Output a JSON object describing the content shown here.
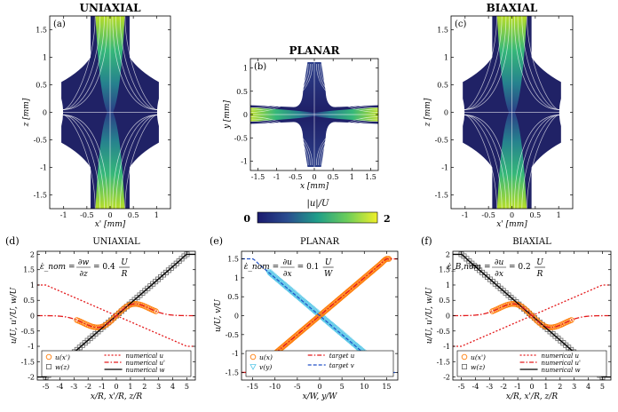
{
  "colors": {
    "vmin": "#1a1a6e",
    "vmid": "#1f9e89",
    "vmax": "#f0f02a",
    "orange": "#ff7f0e",
    "red": "#e41a1c",
    "blue": "#2151c8",
    "cyan": "#5bc8e8",
    "grey": "#666666"
  },
  "colorbar": {
    "label": "|u|/U",
    "min_label": "0",
    "max_label": "2",
    "vmin": 0,
    "vmax": 2
  },
  "fields": [
    {
      "id": "uniaxial",
      "title": "UNIAXIAL",
      "panel": "(a)",
      "xlabel": "x' [mm]",
      "ylabel": "z [mm]",
      "xticks": [
        -1,
        -0.5,
        0,
        0.5,
        1
      ],
      "yticks": [
        -1.5,
        -1,
        -0.5,
        0,
        0.5,
        1,
        1.5
      ],
      "xlim": [
        -1.3,
        1.3
      ],
      "ylim": [
        -1.75,
        1.75
      ]
    },
    {
      "id": "planar",
      "title": "PLANAR",
      "panel": "(b)",
      "xlabel": "x [mm]",
      "ylabel": "y [mm]",
      "xticks": [
        -1.5,
        -1,
        -0.5,
        0,
        0.5,
        1,
        1.5
      ],
      "yticks": [
        -1,
        -0.5,
        0,
        0.5,
        1
      ],
      "xlim": [
        -1.7,
        1.7
      ],
      "ylim": [
        -1.2,
        1.2
      ]
    },
    {
      "id": "biaxial",
      "title": "BIAXIAL",
      "panel": "(c)",
      "xlabel": "x' [mm]",
      "ylabel": "z [mm]",
      "xticks": [
        -1,
        -0.5,
        0,
        0.5,
        1
      ],
      "yticks": [
        -1.5,
        -1,
        -0.5,
        0,
        0.5,
        1,
        1.5
      ],
      "xlim": [
        -1.3,
        1.3
      ],
      "ylim": [
        -1.75,
        1.75
      ]
    }
  ],
  "chart_data": [
    {
      "type": "scatter",
      "id": "uniaxial",
      "panel": "(d)",
      "title": "UNIAXIAL",
      "rate_lhs": "ε̇_nom",
      "rate_frac_num": "∂w",
      "rate_frac_den": "∂z",
      "rate_mid": "= 0.4",
      "rate_u_num": "U",
      "rate_u_den": "R",
      "xlabel": "x/R, x'/R, z/R",
      "ylabel": "u/U, u'/U, w/U",
      "xlim": [
        -5.6,
        5.6
      ],
      "ylim": [
        -2.1,
        2.1
      ],
      "xticks": [
        -5,
        -4,
        -3,
        -2,
        -1,
        0,
        1,
        2,
        3,
        4,
        5
      ],
      "yticks": [
        -2,
        -1.5,
        -1,
        -0.5,
        0,
        0.5,
        1,
        1.5,
        2
      ],
      "legend_markers": [
        "u(x')",
        "w(z)"
      ],
      "legend_lines": [
        "numerical u",
        "numerical u'",
        "numerical w"
      ],
      "profiles": {
        "w_slope": 0.4,
        "w_sat": 2.0,
        "w_edge": 5.0,
        "u_slope": -0.2,
        "u_sat": -1.0,
        "u_edge": 5.2,
        "up_amp": 0.33,
        "up_peak": 1.9,
        "up_decay": 5.5
      },
      "samples": {
        "w_range": [
          -5,
          5
        ],
        "w_n": 55,
        "u_range": [
          -2.8,
          2.8
        ],
        "u_n": 46
      }
    },
    {
      "type": "scatter",
      "id": "planar",
      "panel": "(e)",
      "title": "PLANAR",
      "rate_lhs": "ε̇_nom",
      "rate_frac_num": "∂u",
      "rate_frac_den": "∂x",
      "rate_mid": "= 0.1",
      "rate_u_num": "U",
      "rate_u_den": "W",
      "xlabel": "x/W, y/W",
      "ylabel": "u/U, v/U",
      "xlim": [
        -17.5,
        17.5
      ],
      "ylim": [
        -1.7,
        1.7
      ],
      "xticks": [
        -15,
        -10,
        -5,
        0,
        5,
        10,
        15
      ],
      "yticks": [
        -1.5,
        -1,
        -0.5,
        0,
        0.5,
        1,
        1.5
      ],
      "legend_markers": [
        "u(x)",
        "v(y)"
      ],
      "legend_lines": [
        "target u",
        "target v"
      ],
      "profiles": {
        "u_slope": 0.1,
        "u_sat": 1.5,
        "u_edge": 15,
        "v_slope": -0.1,
        "v_sat": -1.5,
        "v_edge": 15
      },
      "samples": {
        "u_range": [
          -15.5,
          15.5
        ],
        "u_n": 130,
        "v_range": [
          -11.5,
          11.5
        ],
        "v_n": 95
      }
    },
    {
      "type": "scatter",
      "id": "biaxial",
      "panel": "(f)",
      "title": "BIAXIAL",
      "rate_lhs": "ε̇_B,nom",
      "rate_frac_num": "∂u",
      "rate_frac_den": "∂x",
      "rate_mid": "= 0.2",
      "rate_u_num": "U",
      "rate_u_den": "R",
      "xlabel": "x/R, x'/R, z/R",
      "ylabel": "u/U, u'/U, w/U",
      "xlim": [
        -5.6,
        5.6
      ],
      "ylim": [
        -2.1,
        2.1
      ],
      "xticks": [
        -5,
        -4,
        -3,
        -2,
        -1,
        0,
        1,
        2,
        3,
        4,
        5
      ],
      "yticks": [
        -2,
        -1.5,
        -1,
        -0.5,
        0,
        0.5,
        1,
        1.5,
        2
      ],
      "legend_markers": [
        "u(x')",
        "w(z)"
      ],
      "legend_lines": [
        "numerical u",
        "numerical u'",
        "numerical w"
      ],
      "profiles": {
        "w_slope": -0.4,
        "w_sat": -2.0,
        "w_edge": 5.0,
        "u_slope": 0.2,
        "u_sat": 1.0,
        "u_edge": 5.2,
        "up_amp": -0.33,
        "up_peak": 1.9,
        "up_decay": 5.5
      },
      "samples": {
        "w_range": [
          -5,
          5
        ],
        "w_n": 55,
        "u_range": [
          -2.8,
          2.8
        ],
        "u_n": 46
      }
    }
  ]
}
